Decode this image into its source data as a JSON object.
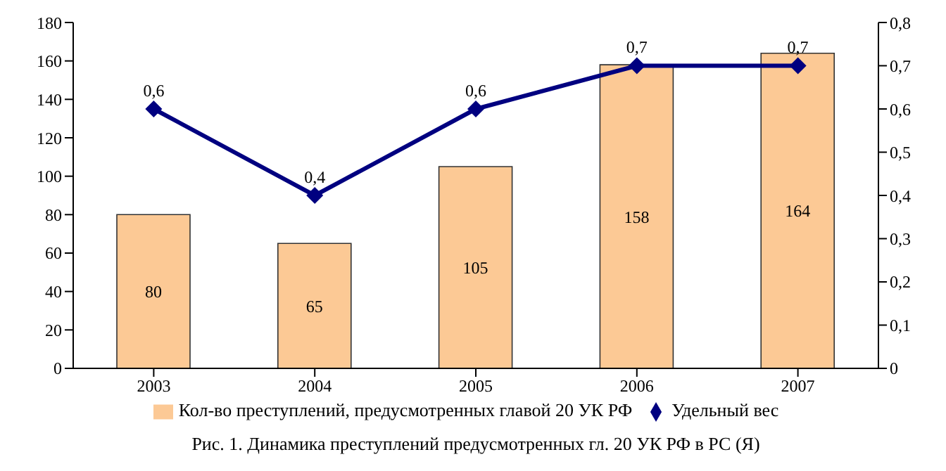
{
  "chart_data": {
    "type": "bar",
    "categories": [
      "2003",
      "2004",
      "2005",
      "2006",
      "2007"
    ],
    "series": [
      {
        "name": "Кол-во преступлений, предусмотренных главой 20 УК РФ",
        "color": "#fcc995",
        "values": [
          80,
          65,
          105,
          158,
          164
        ],
        "value_labels": [
          "80",
          "65",
          "105",
          "158",
          "164"
        ]
      },
      {
        "name": "Удельный вес",
        "type": "line",
        "axis": "y2",
        "color": "#000080",
        "marker": "diamond",
        "values": [
          0.6,
          0.4,
          0.6,
          0.7,
          0.7
        ],
        "value_labels": [
          "0,6",
          "0,4",
          "0,6",
          "0,7",
          "0,7"
        ]
      }
    ],
    "ylim": [
      0,
      180
    ],
    "yticks": [
      0,
      20,
      40,
      60,
      80,
      100,
      120,
      140,
      160,
      180
    ],
    "y2lim": [
      0,
      0.8
    ],
    "y2ticks": [
      0,
      {
        "value": 0.1,
        "label": "0,1"
      },
      {
        "value": 0.2,
        "label": "0,2"
      },
      {
        "value": 0.3,
        "label": "0,3"
      },
      {
        "value": 0.4,
        "label": "0,4"
      },
      {
        "value": 0.5,
        "label": "0,5"
      },
      {
        "value": 0.6,
        "label": "0,6"
      },
      {
        "value": 0.7,
        "label": "0,7"
      },
      {
        "value": 0.8,
        "label": "0,8"
      }
    ],
    "grid": false,
    "legend": "bottom",
    "annotations": [
      "Рис. 1. Динамика преступлений предусмотренных гл. 20 УК РФ в РС (Я)"
    ]
  }
}
